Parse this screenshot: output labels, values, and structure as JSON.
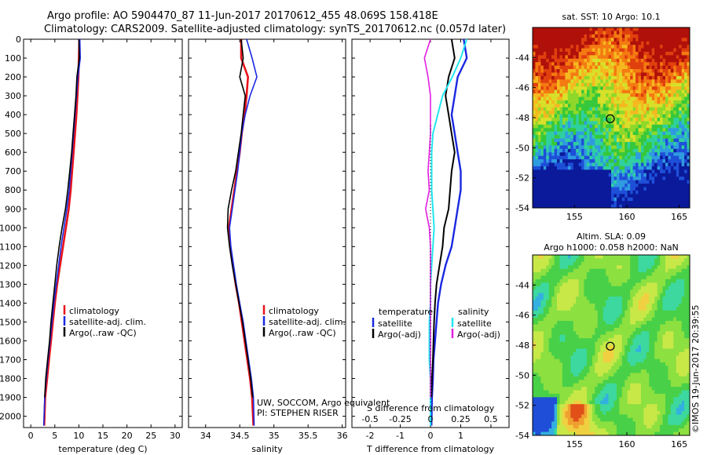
{
  "header": {
    "line1": "Argo profile: AO 5904470_87 11-Jun-2017 20170612_455 48.069S 158.418E",
    "line2": "Climatology: CARS2009. Satellite-adjusted climatology: synTS_20170612.nc (0.057d later)"
  },
  "colors": {
    "climatology": "#e8121a",
    "satellite": "#1a28e0",
    "argo": "#000000",
    "sat_salinity": "#22e6f0",
    "argo_salinity": "#e020e0"
  },
  "depth_axis": {
    "ticks": [
      0,
      100,
      200,
      300,
      400,
      500,
      600,
      700,
      800,
      900,
      1000,
      1100,
      1200,
      1300,
      1400,
      1500,
      1600,
      1700,
      1800,
      1900,
      2000
    ],
    "range": [
      0,
      2060
    ]
  },
  "panels": {
    "temperature": {
      "xlabel": "temperature (deg C)",
      "xticks": [
        0,
        5,
        10,
        15,
        20,
        25,
        30
      ],
      "xrange": [
        -1.5,
        31.5
      ],
      "legend": [
        "climatology",
        "satellite-adj. clim.",
        "Argo(..raw -QC)"
      ]
    },
    "salinity": {
      "xlabel": "salinity",
      "xticks": [
        34,
        34.5,
        35,
        35.5,
        36
      ],
      "xrange": [
        33.75,
        36.05
      ],
      "legend": [
        "climatology",
        "satellite-adj. clim.",
        "Argo(..raw -QC)"
      ],
      "note1": "UW, SOCCOM, Argo equivalent",
      "note2": "PI: STEPHEN RISER"
    },
    "difference": {
      "xlabel": "T difference from climatology",
      "xticks": [
        -2,
        -1,
        0,
        1,
        2
      ],
      "xtick_labels": [
        "-2",
        "-1",
        "0",
        "1",
        ""
      ],
      "xrange": [
        -2.6,
        2.6
      ],
      "s_label": "S difference from climatology",
      "s_ticks": [
        "-0.5",
        "-0.25",
        "0",
        "0.25",
        "0.5"
      ],
      "s_tick_values": [
        -0.5,
        -0.25,
        0,
        0.25,
        0.5
      ],
      "legend_temp_title": "temperature",
      "legend_sal_title": "salinity",
      "legend_temp": [
        "satellite",
        "Argo(-adj)"
      ],
      "legend_sal": [
        "satellite",
        "Argo(-adj)"
      ]
    }
  },
  "chart_data": [
    {
      "type": "line",
      "title": "",
      "xlabel": "temperature (deg C)",
      "ylabel": "",
      "xlim": [
        -1.5,
        31.5
      ],
      "ylim": [
        2060,
        0
      ],
      "series": [
        {
          "name": "climatology",
          "x": [
            10.1,
            10.0,
            9.9,
            9.7,
            9.5,
            9.2,
            8.9,
            8.6,
            8.3,
            7.9,
            7.3,
            6.7,
            6.1,
            5.5,
            5.0,
            4.6,
            4.2,
            3.8,
            3.4,
            3.0,
            2.8
          ],
          "y": [
            0,
            100,
            200,
            300,
            400,
            500,
            600,
            700,
            800,
            900,
            1000,
            1100,
            1200,
            1300,
            1400,
            1500,
            1600,
            1700,
            1800,
            1900,
            2050
          ]
        },
        {
          "name": "satellite-adj. clim.",
          "x": [
            10.2,
            10.3,
            9.8,
            9.5,
            9.2,
            8.9,
            8.6,
            8.3,
            8.0,
            7.5,
            6.9,
            6.3,
            5.8,
            5.3,
            4.8,
            4.4,
            4.0,
            3.6,
            3.2,
            2.9,
            2.7
          ],
          "y": [
            0,
            100,
            200,
            300,
            400,
            500,
            600,
            700,
            800,
            900,
            1000,
            1100,
            1200,
            1300,
            1400,
            1500,
            1600,
            1700,
            1800,
            1900,
            2050
          ]
        },
        {
          "name": "Argo(..raw -QC)",
          "x": [
            10.0,
            10.1,
            9.6,
            9.4,
            9.1,
            8.8,
            8.5,
            8.1,
            7.7,
            7.2,
            6.5,
            5.9,
            5.4,
            5.0,
            4.6,
            4.2,
            3.9,
            3.5,
            3.1,
            2.9
          ],
          "y": [
            0,
            100,
            200,
            300,
            400,
            500,
            600,
            700,
            800,
            900,
            1000,
            1100,
            1200,
            1300,
            1400,
            1500,
            1600,
            1700,
            1800,
            1900
          ]
        }
      ]
    },
    {
      "type": "line",
      "title": "",
      "xlabel": "salinity",
      "ylabel": "",
      "xlim": [
        33.75,
        36.05
      ],
      "ylim": [
        2060,
        0
      ],
      "series": [
        {
          "name": "climatology",
          "x": [
            34.52,
            34.52,
            34.62,
            34.6,
            34.57,
            34.53,
            34.5,
            34.46,
            34.42,
            34.38,
            34.34,
            34.36,
            34.4,
            34.44,
            34.49,
            34.53,
            34.57,
            34.61,
            34.65,
            34.68,
            34.7
          ],
          "y": [
            0,
            100,
            200,
            300,
            400,
            500,
            600,
            700,
            800,
            900,
            1000,
            1100,
            1200,
            1300,
            1400,
            1500,
            1600,
            1700,
            1800,
            1900,
            2050
          ]
        },
        {
          "name": "satellite-adj. clim.",
          "x": [
            34.6,
            34.68,
            34.75,
            34.65,
            34.58,
            34.53,
            34.5,
            34.47,
            34.43,
            34.39,
            34.35,
            34.37,
            34.41,
            34.45,
            34.5,
            34.55,
            34.59,
            34.63,
            34.67,
            34.7,
            34.71
          ],
          "y": [
            0,
            100,
            200,
            300,
            400,
            500,
            600,
            700,
            800,
            900,
            1000,
            1100,
            1200,
            1300,
            1400,
            1500,
            1600,
            1700,
            1800,
            1900,
            2050
          ]
        },
        {
          "name": "Argo(..raw -QC)",
          "x": [
            34.52,
            34.55,
            34.5,
            34.58,
            34.55,
            34.52,
            34.48,
            34.44,
            34.38,
            34.33,
            34.32,
            34.35,
            34.39,
            34.44,
            34.49,
            34.54,
            34.58,
            34.62,
            34.66,
            34.69
          ],
          "y": [
            0,
            100,
            200,
            300,
            400,
            500,
            600,
            700,
            800,
            900,
            1000,
            1100,
            1200,
            1300,
            1400,
            1500,
            1600,
            1700,
            1800,
            1900
          ]
        }
      ]
    },
    {
      "type": "line",
      "title": "",
      "xlabel": "T difference from climatology",
      "ylabel": "",
      "xlim": [
        -2.6,
        2.6
      ],
      "ylim": [
        2060,
        0
      ],
      "series": [
        {
          "name": "temperature satellite",
          "x": [
            1.1,
            1.2,
            0.9,
            0.8,
            0.7,
            0.8,
            0.9,
            1.0,
            1.0,
            0.9,
            0.8,
            0.7,
            0.5,
            0.35,
            0.25,
            0.2,
            0.15,
            0.1,
            0.08,
            0.05,
            0.03
          ],
          "y": [
            0,
            100,
            200,
            300,
            400,
            500,
            600,
            700,
            800,
            900,
            1000,
            1100,
            1200,
            1300,
            1400,
            1500,
            1600,
            1700,
            1800,
            1900,
            2050
          ]
        },
        {
          "name": "temperature Argo(-adj)",
          "x": [
            0.7,
            0.8,
            0.6,
            0.5,
            0.6,
            0.7,
            0.8,
            0.7,
            0.65,
            0.6,
            0.45,
            0.4,
            0.3,
            0.2,
            0.15,
            0.12,
            0.1,
            0.08,
            0.05,
            0.03
          ],
          "y": [
            0,
            100,
            200,
            300,
            400,
            500,
            600,
            700,
            800,
            900,
            1000,
            1100,
            1200,
            1300,
            1400,
            1500,
            1600,
            1700,
            1800,
            1900
          ]
        },
        {
          "name": "salinity satellite",
          "x": [
            0.3,
            0.25,
            0.18,
            0.1,
            0.06,
            0.02,
            0.01,
            0.01,
            0.01,
            0.02,
            0.03,
            0.02,
            0.01,
            0.0,
            0.0,
            -0.01,
            -0.01,
            -0.01,
            0.0,
            0.0,
            0.0
          ],
          "y": [
            0,
            100,
            200,
            300,
            400,
            500,
            600,
            700,
            800,
            900,
            1000,
            1100,
            1200,
            1300,
            1400,
            1500,
            1600,
            1700,
            1800,
            1900,
            2050
          ]
        },
        {
          "name": "salinity Argo(-adj)",
          "x": [
            0.0,
            -0.05,
            -0.02,
            0.0,
            0.0,
            0.0,
            -0.01,
            -0.02,
            -0.01,
            -0.04,
            -0.01,
            0.0,
            0.0,
            0.0,
            0.0,
            0.0,
            0.0,
            0.0,
            0.0,
            0.0
          ],
          "y": [
            0,
            100,
            200,
            300,
            400,
            500,
            600,
            700,
            800,
            900,
            1000,
            1100,
            1200,
            1300,
            1400,
            1500,
            1600,
            1700,
            1800,
            1900
          ]
        }
      ]
    },
    {
      "type": "heatmap",
      "title": "sat. SST: 10 Argo: 10.1",
      "xlabel": "",
      "ylabel": "",
      "xlim": [
        151,
        166
      ],
      "ylim": [
        -54,
        -42
      ],
      "xticks": [
        155,
        160,
        165
      ],
      "yticks": [
        -44,
        -46,
        -48,
        -50,
        -52,
        -54
      ],
      "marker": {
        "lon": 158.418,
        "lat": -48.069
      }
    },
    {
      "type": "heatmap",
      "title": "Altim. SLA: 0.09",
      "subtitle": "Argo h1000: 0.058 h2000: NaN",
      "xlabel": "",
      "ylabel": "",
      "xlim": [
        151,
        166
      ],
      "ylim": [
        -54,
        -42
      ],
      "xticks": [
        155,
        160,
        165
      ],
      "yticks": [
        -44,
        -46,
        -48,
        -50,
        -52,
        -54
      ],
      "marker": {
        "lon": 158.418,
        "lat": -48.069
      }
    }
  ],
  "stamp": "©IMOS 19-Jun-2017 20:39:55"
}
